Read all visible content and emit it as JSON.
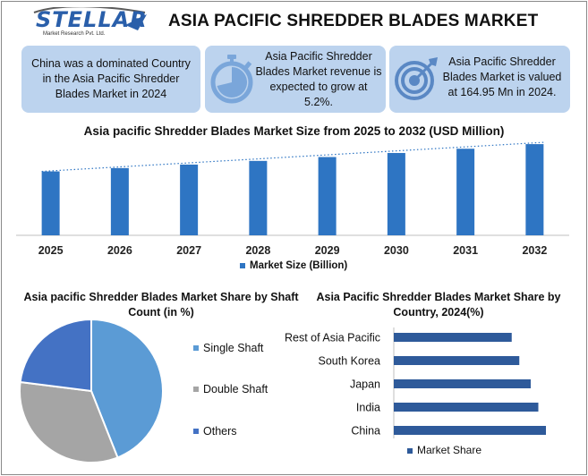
{
  "header": {
    "logo_text": "STELLAR",
    "logo_subtext": "Market Research Pvt. Ltd.",
    "title": "ASIA PACIFIC SHREDDER BLADES MARKET"
  },
  "cards": [
    {
      "text": "China was a dominated Country in the Asia Pacific Shredder Blades Market in 2024",
      "icon": "none"
    },
    {
      "text": "Asia Pacific Shredder Blades Market revenue is expected to grow at 5.2%.",
      "icon": "stopwatch-icon"
    },
    {
      "text": "Asia Pacific Shredder Blades Market is valued at 164.95 Mn in 2024.",
      "icon": "target-icon"
    }
  ],
  "colors": {
    "card_bg": "#bcd3ee",
    "bar_blue": "#2e75c3",
    "pie_single": "#5b9bd5",
    "pie_double": "#a5a5a5",
    "pie_others": "#4472c4",
    "hbar": "#2e5a9a"
  },
  "chart_data": [
    {
      "type": "bar",
      "title": "Asia pacific Shredder Blades Market Size from 2025 to 2032 (USD Million)",
      "categories": [
        "2025",
        "2026",
        "2027",
        "2028",
        "2029",
        "2030",
        "2031",
        "2032"
      ],
      "series": [
        {
          "name": "Market Size (Billion)",
          "values": [
            173.5,
            182.5,
            192.0,
            202.0,
            212.5,
            223.5,
            235.0,
            247.5
          ]
        }
      ],
      "trendline": true,
      "legend_position": "bottom",
      "ylim": [
        0,
        255
      ]
    },
    {
      "type": "pie",
      "title": "Asia pacific Shredder Blades Market Share by Shaft Count (in %)",
      "labels": [
        "Single Shaft",
        "Double Shaft",
        "Others"
      ],
      "values": [
        44,
        33,
        23
      ],
      "legend_position": "right"
    },
    {
      "type": "bar",
      "orientation": "horizontal",
      "title": "Asia Pacific Shredder Blades Market Share by Country, 2024(%)",
      "categories": [
        "Rest of Asia Pacific",
        "South Korea",
        "Japan",
        "India",
        "China"
      ],
      "series": [
        {
          "name": "Market Share",
          "values": [
            31,
            33,
            36,
            38,
            40
          ]
        }
      ],
      "legend_position": "bottom"
    }
  ]
}
